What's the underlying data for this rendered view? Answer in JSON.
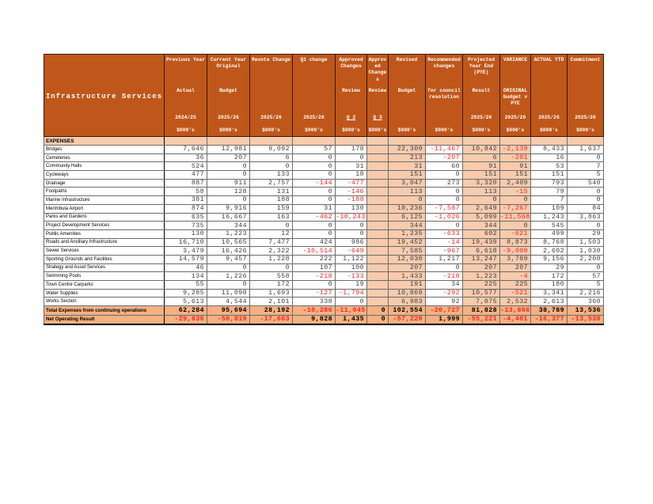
{
  "colors": {
    "header_bg": "#c0571a",
    "band_light": "#f8cbad",
    "band_medium": "#f4b183",
    "text_number": "#3f3f3f",
    "text_negative": "#ff1f1f",
    "header_text": "#ffffff",
    "grid_line": "#6b6b6b",
    "frame": "#1a1a1a"
  },
  "table": {
    "title": "Infrastructure Services",
    "section_label": "EXPENSES",
    "unit_label": "$000's",
    "columns": [
      {
        "key": "prev-year",
        "top": "Previous Year",
        "mid": "Actual",
        "year": "2024/25"
      },
      {
        "key": "cur-year-original",
        "top": "Current Year Original",
        "mid": "Budget",
        "year": "2025/26"
      },
      {
        "key": "revote-change",
        "top": "Revote Change",
        "mid": "",
        "year": "2025/26"
      },
      {
        "key": "q1-change",
        "top": "Q1 change",
        "mid": "",
        "year": "2025/26"
      },
      {
        "key": "approved-q2",
        "top": "Approved Changes",
        "mid": "Review",
        "year": "Q 2"
      },
      {
        "key": "approved-q3",
        "top": "Approved Changes",
        "mid": "Review",
        "year": "Q 3"
      },
      {
        "key": "revised-budget",
        "top": "Revised",
        "mid": "Budget",
        "year": ""
      },
      {
        "key": "recommended-changes",
        "top": "Recommended changes",
        "mid": "for council resolution",
        "year": ""
      },
      {
        "key": "projected-year-end",
        "top": "Projected Year End (PYE)",
        "mid": "Result",
        "year": "2025/26"
      },
      {
        "key": "variance",
        "top": "VARIANCE",
        "mid": "ORIGINAL budget v PYE",
        "year": "2025/26"
      },
      {
        "key": "actual-ytd",
        "top": "ACTUAL YTD",
        "mid": "",
        "year": "2025/26"
      },
      {
        "key": "commitment",
        "top": "Commitment",
        "mid": "",
        "year": "2025/26"
      }
    ],
    "rows": [
      {
        "label": "Bridges",
        "values": [
          "7,646",
          "12,981",
          "9,092",
          "57",
          "178",
          "",
          "22,309",
          "-11,467",
          "10,842",
          "-2,139",
          "8,433",
          "1,637"
        ]
      },
      {
        "label": "Cemeteries",
        "values": [
          "36",
          "207",
          "6",
          "0",
          "0",
          "",
          "213",
          "-207",
          "6",
          "-201",
          "16",
          "0"
        ]
      },
      {
        "label": "Community Halls",
        "values": [
          "524",
          "0",
          "0",
          "0",
          "31",
          "",
          "31",
          "60",
          "91",
          "91",
          "53",
          "7"
        ]
      },
      {
        "label": "Cycleways",
        "values": [
          "477",
          "0",
          "133",
          "0",
          "18",
          "",
          "151",
          "0",
          "151",
          "151",
          "151",
          "5"
        ]
      },
      {
        "label": "Drainage",
        "values": [
          "887",
          "911",
          "2,757",
          "-144",
          "-477",
          "",
          "3,047",
          "273",
          "3,320",
          "2,409",
          "793",
          "540"
        ]
      },
      {
        "label": "Footpaths",
        "values": [
          "58",
          "128",
          "131",
          "0",
          "-146",
          "",
          "113",
          "0",
          "113",
          "-15",
          "79",
          "0"
        ]
      },
      {
        "label": "Marine Infrastructure",
        "values": [
          "381",
          "0",
          "188",
          "0",
          "-188",
          "",
          "0",
          "0",
          "0",
          "0",
          "7",
          "0"
        ]
      },
      {
        "label": "Merimbula Airport",
        "values": [
          "874",
          "9,916",
          "159",
          "31",
          "130",
          "",
          "10,236",
          "-7,587",
          "2,649",
          "-7,267",
          "109",
          "84"
        ]
      },
      {
        "label": "Parks and Gardens",
        "values": [
          "635",
          "16,667",
          "163",
          "-462",
          "-10,243",
          "",
          "6,125",
          "-1,026",
          "5,099",
          "-11,568",
          "1,243",
          "3,863"
        ]
      },
      {
        "label": "Project Development Services",
        "values": [
          "735",
          "344",
          "0",
          "0",
          "0",
          "",
          "344",
          "0",
          "344",
          "0",
          "545",
          "0"
        ]
      },
      {
        "label": "Public Amenities",
        "values": [
          "130",
          "1,223",
          "12",
          "0",
          "0",
          "",
          "1,235",
          "-633",
          "602",
          "-621",
          "499",
          "29"
        ]
      },
      {
        "label": "Roads and Ancillary Infrastructure",
        "values": [
          "16,710",
          "10,565",
          "7,477",
          "424",
          "986",
          "",
          "19,452",
          "-14",
          "19,439",
          "8,873",
          "8,768",
          "1,503"
        ]
      },
      {
        "label": "Sewer Services",
        "values": [
          "3,479",
          "16,426",
          "2,322",
          "-10,514",
          "-649",
          "",
          "7,585",
          "-967",
          "6,618",
          "-9,808",
          "2,602",
          "1,030"
        ]
      },
      {
        "label": "Sporting Grounds and Facilities",
        "values": [
          "14,579",
          "9,457",
          "1,228",
          "222",
          "1,122",
          "",
          "12,030",
          "1,217",
          "13,247",
          "3,789",
          "9,156",
          "2,200"
        ]
      },
      {
        "label": "Strategy and Asset Services",
        "values": [
          "46",
          "0",
          "0",
          "107",
          "100",
          "",
          "207",
          "0",
          "207",
          "207",
          "29",
          "0"
        ]
      },
      {
        "label": "Swimming Pools",
        "values": [
          "134",
          "1,226",
          "558",
          "-218",
          "-133",
          "",
          "1,433",
          "-210",
          "1,223",
          "-4",
          "172",
          "57"
        ]
      },
      {
        "label": "Town Centre Carparks",
        "values": [
          "55",
          "0",
          "172",
          "0",
          "19",
          "",
          "191",
          "34",
          "225",
          "225",
          "180",
          "5"
        ]
      },
      {
        "label": "Water Supplies",
        "values": [
          "9,285",
          "11,098",
          "1,693",
          "-127",
          "-1,794",
          "",
          "10,869",
          "-292",
          "10,577",
          "-521",
          "3,341",
          "2,216"
        ]
      },
      {
        "label": "Works Section",
        "values": [
          "5,613",
          "4,544",
          "2,101",
          "338",
          "0",
          "",
          "6,983",
          "92",
          "7,075",
          "2,532",
          "2,613",
          "360"
        ]
      }
    ],
    "total_row": {
      "label": "Total Expenses from continuing operations",
      "values": [
        "62,284",
        "95,694",
        "28,192",
        "-10,286",
        "-11,045",
        "0",
        "102,554",
        "-20,727",
        "81,828",
        "-13,866",
        "38,789",
        "13,536"
      ]
    },
    "net_row": {
      "label": "Net Operating Result",
      "values": [
        "-29,836",
        "-50,819",
        "-17,663",
        "9,828",
        "1,435",
        "0",
        "-57,220",
        "1,999",
        "-55,221",
        "-4,401",
        "-16,377",
        "-13,538"
      ]
    }
  }
}
